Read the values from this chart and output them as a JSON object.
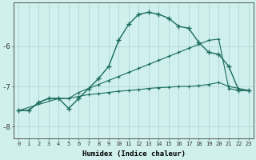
{
  "xlabel": "Humidex (Indice chaleur)",
  "background_color": "#cff0ed",
  "grid_color": "#b0d8d4",
  "line_color": "#1a6b5e",
  "xlim": [
    -0.5,
    23.5
  ],
  "ylim": [
    -8.3,
    -4.9
  ],
  "yticks": [
    -8,
    -7,
    -6
  ],
  "xticks": [
    0,
    1,
    2,
    3,
    4,
    5,
    6,
    7,
    8,
    9,
    10,
    11,
    12,
    13,
    14,
    15,
    16,
    17,
    18,
    19,
    20,
    21,
    22,
    23
  ],
  "line1_x": [
    0,
    1,
    2,
    3,
    4,
    5,
    6,
    7,
    8,
    9,
    10,
    11,
    12,
    13,
    14,
    15,
    16,
    17,
    18,
    19,
    20,
    21,
    22,
    23
  ],
  "line1_y": [
    -7.6,
    -7.6,
    -7.4,
    -7.3,
    -7.3,
    -7.55,
    -7.3,
    -7.05,
    -6.8,
    -6.5,
    -5.85,
    -5.45,
    -5.2,
    -5.15,
    -5.2,
    -5.3,
    -5.5,
    -5.55,
    -5.9,
    -6.15,
    -6.2,
    -6.5,
    -7.1,
    -7.1
  ],
  "line2_x": [
    0,
    4,
    5,
    6,
    7,
    8,
    9,
    10,
    11,
    12,
    13,
    14,
    15,
    16,
    17,
    18,
    19,
    20,
    21,
    22,
    23
  ],
  "line2_y": [
    -7.6,
    -7.3,
    -7.3,
    -7.15,
    -7.05,
    -6.95,
    -6.85,
    -6.75,
    -6.65,
    -6.55,
    -6.45,
    -6.35,
    -6.25,
    -6.15,
    -6.05,
    -5.95,
    -5.85,
    -5.82,
    -7.05,
    -7.1,
    -7.1
  ],
  "line3_x": [
    0,
    1,
    2,
    3,
    4,
    5,
    6,
    7,
    8,
    9,
    10,
    11,
    12,
    13,
    14,
    15,
    16,
    17,
    18,
    19,
    20,
    21,
    22,
    23
  ],
  "line3_y": [
    -7.6,
    -7.6,
    -7.4,
    -7.3,
    -7.3,
    -7.3,
    -7.25,
    -7.2,
    -7.18,
    -7.15,
    -7.12,
    -7.1,
    -7.08,
    -7.05,
    -7.03,
    -7.02,
    -7.0,
    -7.0,
    -6.98,
    -6.95,
    -6.9,
    -7.0,
    -7.05,
    -7.1
  ]
}
